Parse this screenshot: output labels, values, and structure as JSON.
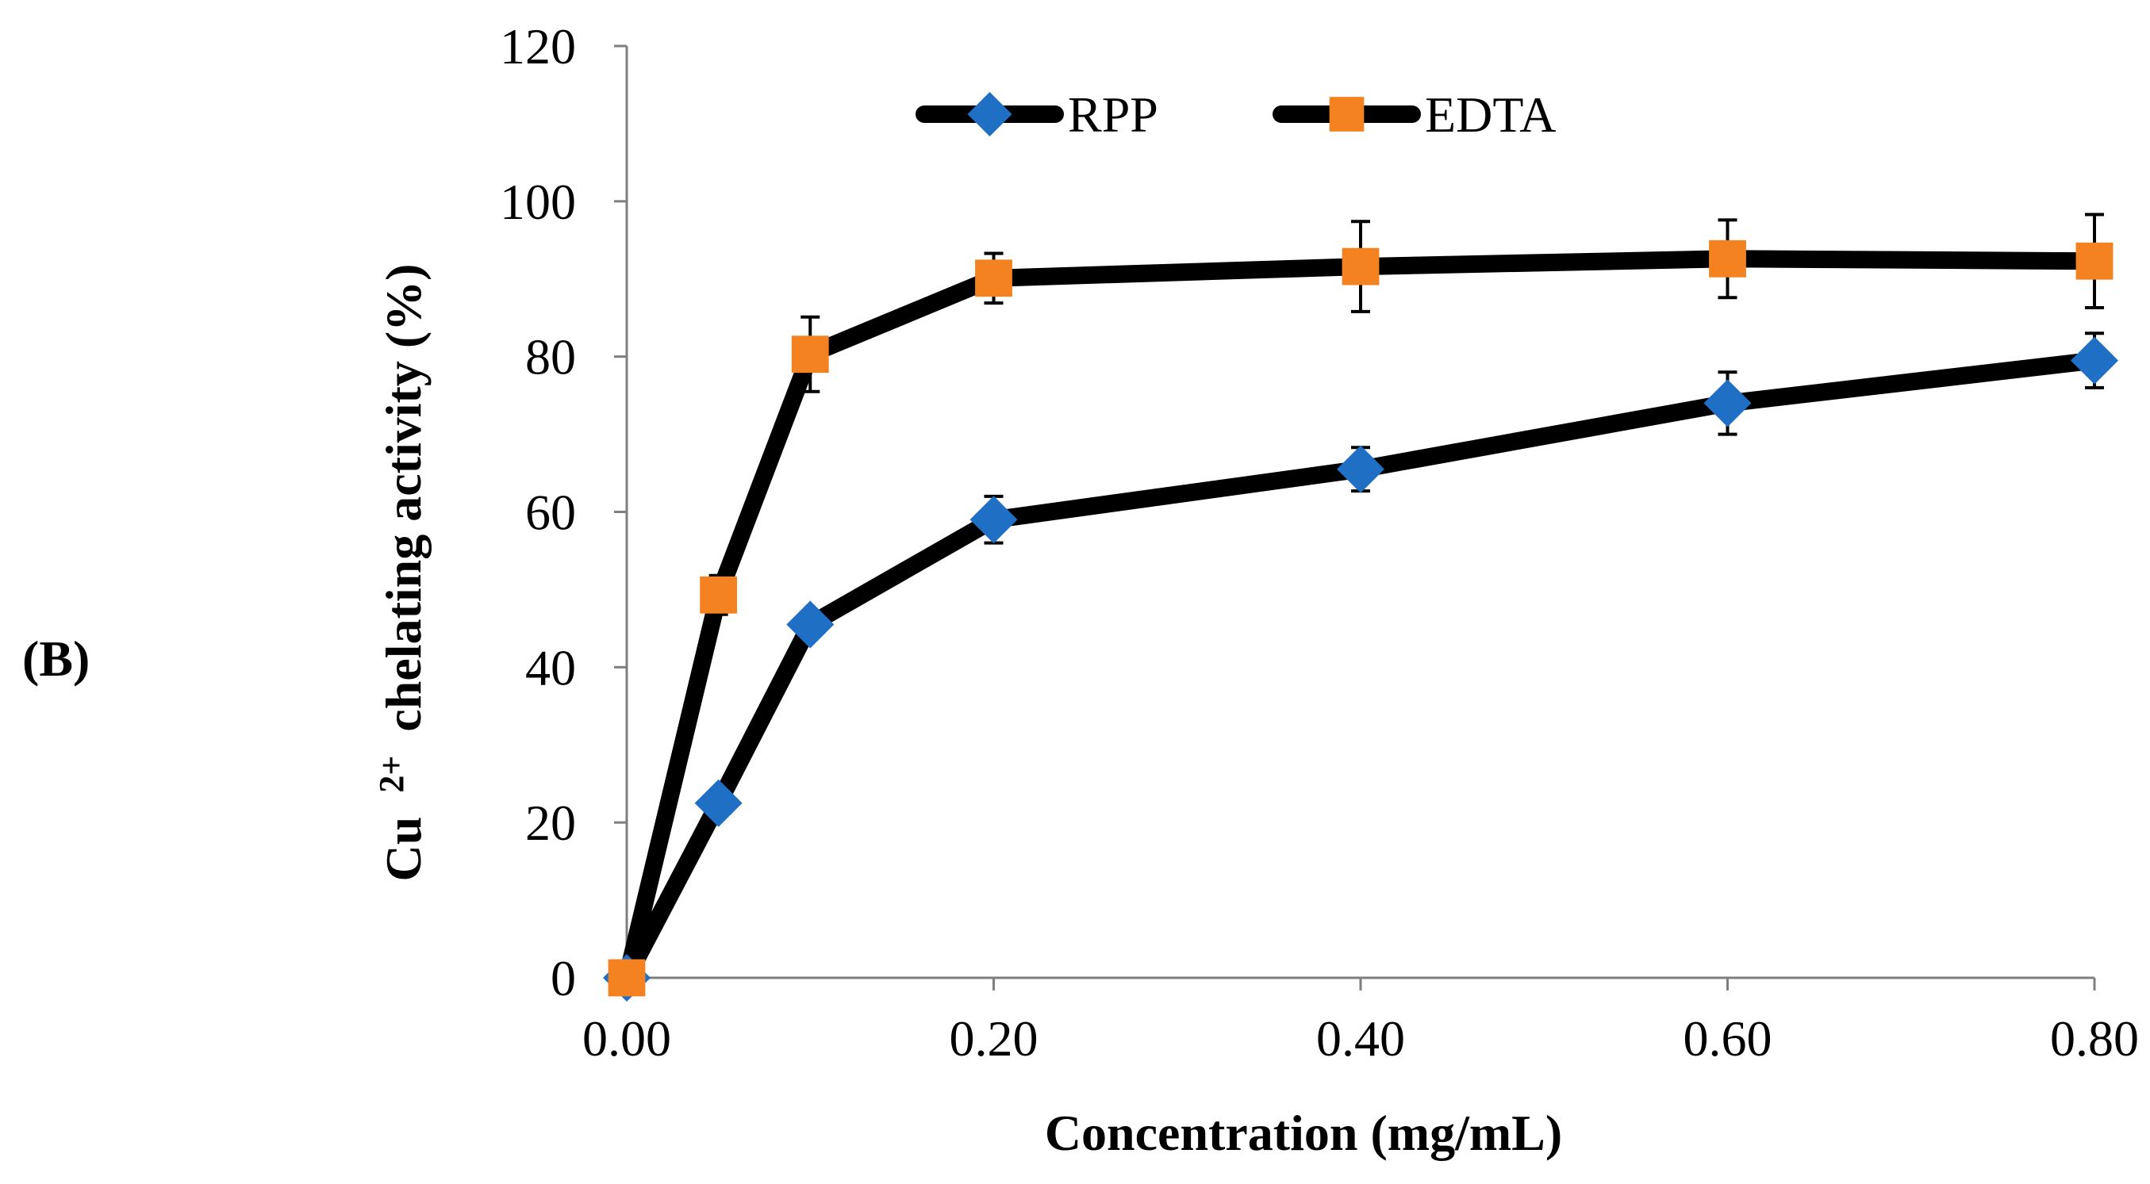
{
  "panel_label": "(B)",
  "chart_data": {
    "type": "line",
    "title": "",
    "xlabel": "Concentration (mg/mL)",
    "ylabel_main": "Cu",
    "ylabel_sup": "2+",
    "ylabel_rest": "chelating activity (%)",
    "xlim": [
      0,
      0.8
    ],
    "ylim": [
      0,
      120
    ],
    "x_ticks": [
      0,
      0.2,
      0.4,
      0.6,
      0.8
    ],
    "x_tick_labels": [
      "0.00",
      "0.20",
      "0.40",
      "0.60",
      "0.80"
    ],
    "y_ticks": [
      0,
      20,
      40,
      60,
      80,
      100,
      120
    ],
    "y_tick_labels": [
      "0",
      "20",
      "40",
      "60",
      "80",
      "100",
      "120"
    ],
    "grid": false,
    "legend_position": "top",
    "series": [
      {
        "name": "RPP",
        "marker": "diamond",
        "color": "#1f6fc5",
        "x": [
          0,
          0.05,
          0.1,
          0.2,
          0.4,
          0.6,
          0.8
        ],
        "values": [
          0,
          22.5,
          45.5,
          59,
          65.5,
          74,
          79.5
        ],
        "errors": [
          0,
          0,
          1.5,
          3,
          2.8,
          4,
          3.5
        ]
      },
      {
        "name": "EDTA",
        "marker": "square",
        "color": "#f58220",
        "x": [
          0,
          0.05,
          0.1,
          0.2,
          0.4,
          0.6,
          0.8
        ],
        "values": [
          0,
          49.3,
          80.3,
          90.1,
          91.6,
          92.6,
          92.3
        ],
        "errors": [
          0,
          2.5,
          4.8,
          3.2,
          5.8,
          5,
          6
        ]
      }
    ]
  }
}
